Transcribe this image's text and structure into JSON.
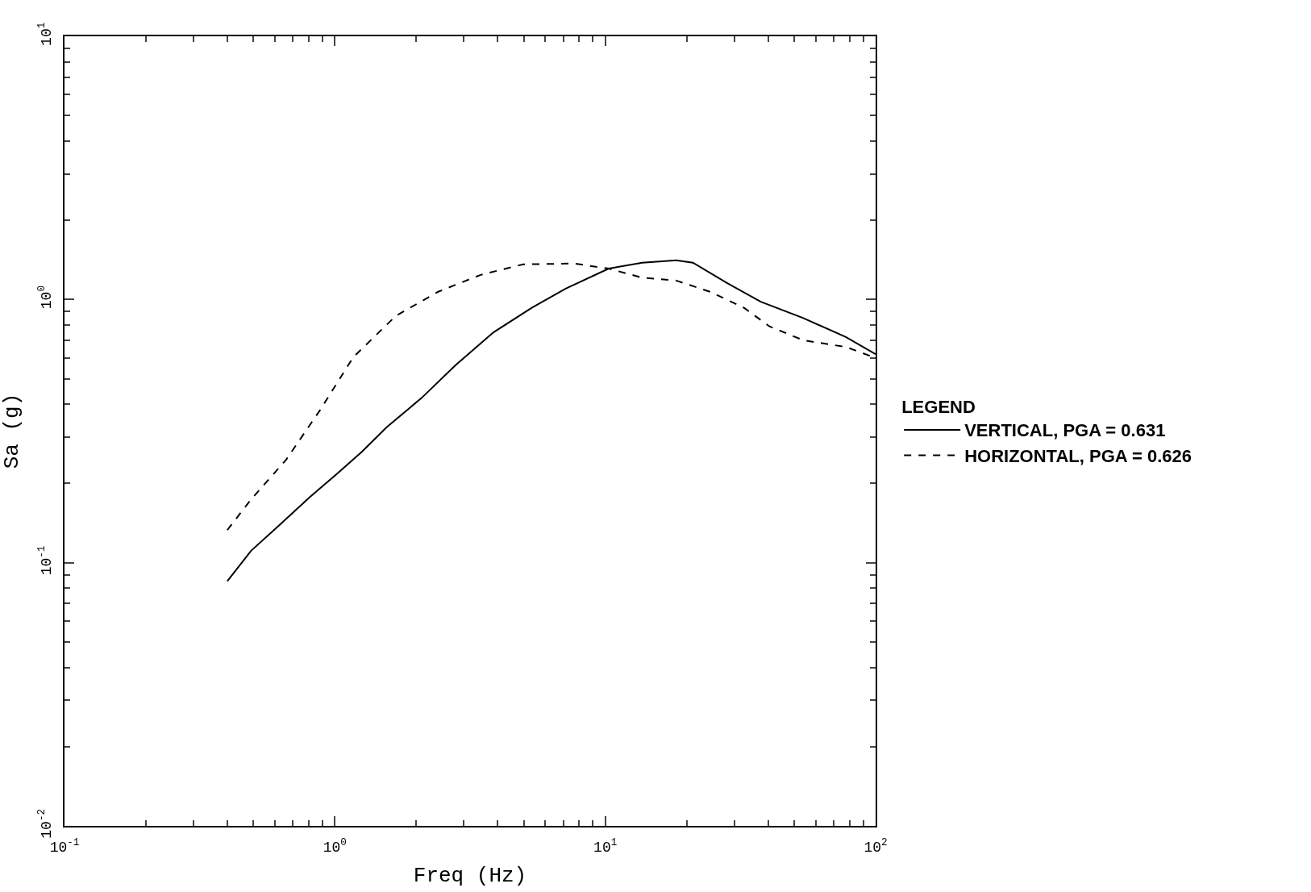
{
  "chart_data": {
    "type": "line",
    "xlabel": "Freq (Hz)",
    "ylabel": "Sa (g)",
    "legend_title": "LEGEND",
    "legend": "right",
    "log": "xy",
    "marker": "none",
    "xlim": [
      0.1,
      100
    ],
    "ylim": [
      0.01,
      10
    ],
    "xticks": [
      {
        "value": 0.1,
        "label": "10$^{-1}$"
      },
      {
        "value": 1,
        "label": "10$^{0}$"
      },
      {
        "value": 10,
        "label": "10$^{1}$"
      },
      {
        "value": 100,
        "label": "10$^{2}$"
      }
    ],
    "yticks": [
      {
        "value": 0.01,
        "label": "10$^{-2}$"
      },
      {
        "value": 0.1,
        "label": "10$^{-1}$"
      },
      {
        "value": 1,
        "label": "10$^{0}$"
      },
      {
        "value": 10,
        "label": "10$^{1}$"
      }
    ],
    "series": [
      {
        "name": "VERTICAL, PGA = 0.631",
        "color": "#000000",
        "line_style": "solid",
        "x": [
          0.4,
          0.49,
          0.61,
          0.81,
          1.01,
          1.26,
          1.56,
          2.09,
          2.79,
          3.86,
          5.35,
          7.14,
          10.3,
          13.7,
          18.3,
          21.1,
          28.2,
          37.6,
          54,
          77.6,
          100
        ],
        "values": [
          0.085,
          0.111,
          0.136,
          0.178,
          0.216,
          0.264,
          0.328,
          0.422,
          0.562,
          0.75,
          0.93,
          1.1,
          1.31,
          1.38,
          1.41,
          1.38,
          1.155,
          0.98,
          0.85,
          0.72,
          0.62
        ]
      },
      {
        "name": "HORIZONTAL, PGA = 0.626",
        "color": "#000000",
        "line_style": "dashed",
        "x": [
          0.4,
          0.49,
          0.66,
          0.88,
          1.17,
          1.68,
          2.41,
          3.46,
          4.97,
          7.67,
          10.3,
          13.7,
          18.3,
          24.4,
          32.6,
          40.5,
          54,
          77.6,
          100
        ],
        "values": [
          0.133,
          0.174,
          0.246,
          0.379,
          0.604,
          0.866,
          1.07,
          1.24,
          1.36,
          1.37,
          1.31,
          1.21,
          1.18,
          1.07,
          0.93,
          0.79,
          0.7,
          0.66,
          0.6
        ]
      }
    ]
  }
}
